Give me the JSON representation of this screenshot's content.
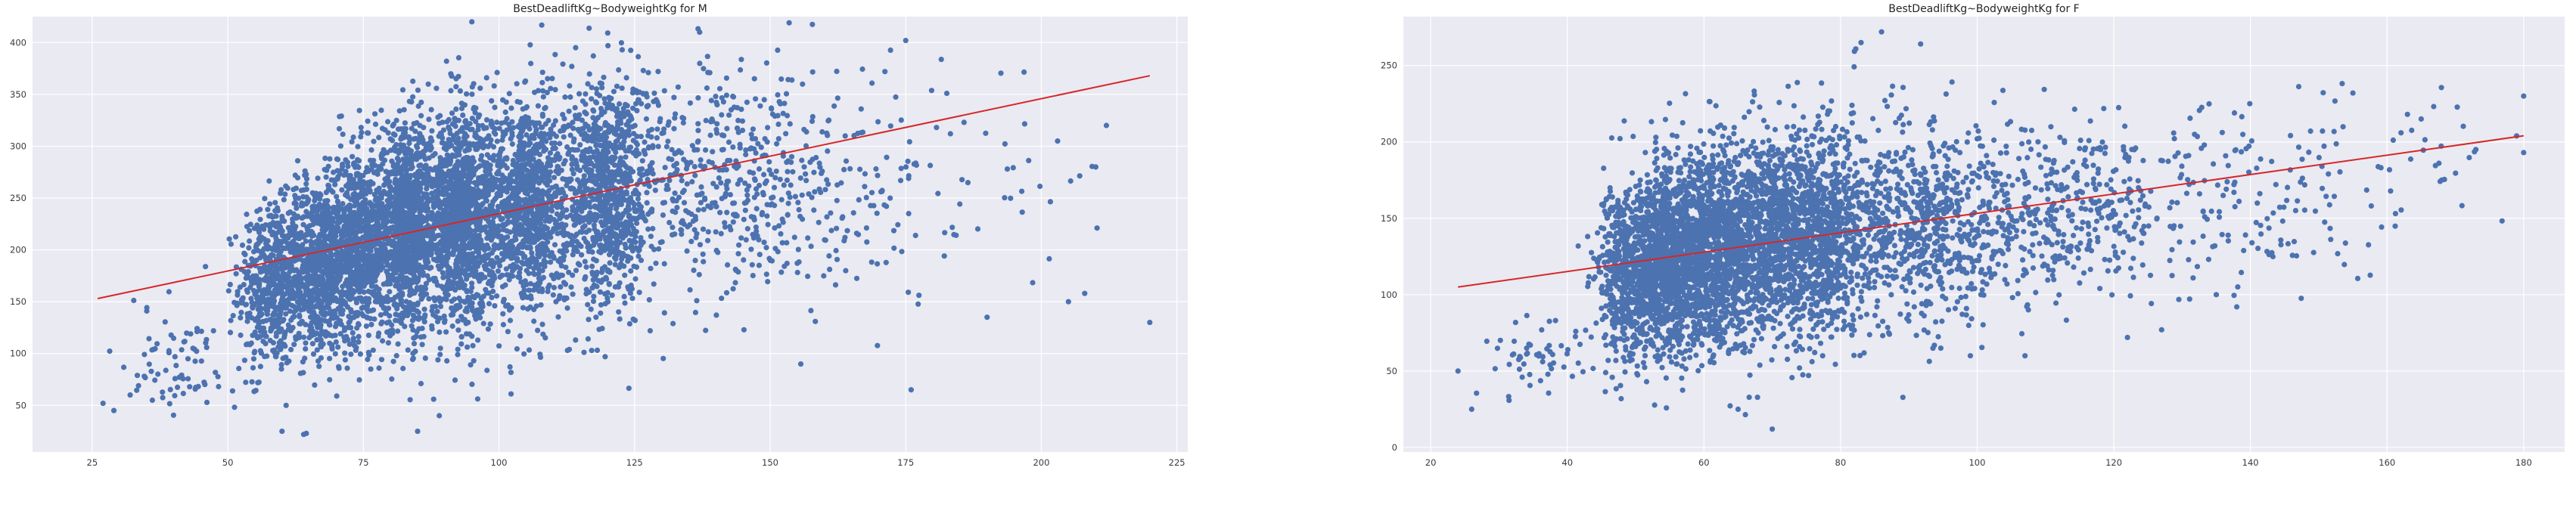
{
  "chart_data": [
    {
      "type": "scatter",
      "title": "BestDeadliftKg~BodyweightKg for M",
      "xlabel": "",
      "ylabel": "",
      "xlim": [
        14,
        227
      ],
      "ylim": [
        5,
        425
      ],
      "xticks": [
        25,
        50,
        75,
        100,
        125,
        150,
        175,
        200,
        225
      ],
      "yticks": [
        50,
        100,
        150,
        200,
        250,
        300,
        350,
        400
      ],
      "grid": true,
      "point_color": "#4c72b0",
      "line_color": "#d62728",
      "regression_line": {
        "x": [
          26,
          220
        ],
        "y": [
          153,
          368
        ]
      },
      "clusters": [
        {
          "cx": 58,
          "cy": 165,
          "sx": 3,
          "sy": 40,
          "n": 500
        },
        {
          "cx": 66,
          "cy": 185,
          "sx": 3,
          "sy": 42,
          "n": 700
        },
        {
          "cx": 74,
          "cy": 205,
          "sx": 3,
          "sy": 45,
          "n": 900
        },
        {
          "cx": 83,
          "cy": 220,
          "sx": 3,
          "sy": 48,
          "n": 1100
        },
        {
          "cx": 93,
          "cy": 232,
          "sx": 3,
          "sy": 50,
          "n": 1200
        },
        {
          "cx": 105,
          "cy": 245,
          "sx": 4,
          "sy": 52,
          "n": 1100
        },
        {
          "cx": 120,
          "cy": 255,
          "sx": 4,
          "sy": 55,
          "n": 900
        },
        {
          "cx": 140,
          "cy": 265,
          "sx": 11,
          "sy": 55,
          "n": 500
        },
        {
          "cx": 165,
          "cy": 270,
          "sx": 10,
          "sy": 55,
          "n": 130
        },
        {
          "cx": 192,
          "cy": 262,
          "sx": 9,
          "sy": 55,
          "n": 30
        },
        {
          "cx": 42,
          "cy": 95,
          "sx": 6,
          "sy": 25,
          "n": 80
        }
      ],
      "outliers": [
        [
          95,
          420
        ],
        [
          137,
          410
        ],
        [
          175,
          402
        ],
        [
          203,
          305
        ],
        [
          212,
          320
        ],
        [
          220,
          130
        ],
        [
          27,
          52
        ],
        [
          29,
          45
        ],
        [
          32,
          60
        ],
        [
          176,
          65
        ],
        [
          190,
          135
        ],
        [
          205,
          150
        ],
        [
          208,
          158
        ],
        [
          85,
          25
        ],
        [
          89,
          40
        ],
        [
          64,
          22
        ],
        [
          60,
          25
        ]
      ]
    },
    {
      "type": "scatter",
      "title": "BestDeadliftKg~BodyweightKg for F",
      "xlabel": "",
      "ylabel": "",
      "xlim": [
        16,
        186
      ],
      "ylim": [
        -3,
        282
      ],
      "xticks": [
        20,
        40,
        60,
        80,
        100,
        120,
        140,
        160,
        180
      ],
      "yticks": [
        0,
        50,
        100,
        150,
        200,
        250
      ],
      "grid": true,
      "point_color": "#4c72b0",
      "line_color": "#d62728",
      "regression_line": {
        "x": [
          24,
          180
        ],
        "y": [
          105,
          204
        ]
      },
      "clusters": [
        {
          "cx": 48,
          "cy": 115,
          "sx": 2,
          "sy": 28,
          "n": 500
        },
        {
          "cx": 53,
          "cy": 120,
          "sx": 2,
          "sy": 30,
          "n": 700
        },
        {
          "cx": 58,
          "cy": 126,
          "sx": 3,
          "sy": 32,
          "n": 900
        },
        {
          "cx": 64,
          "cy": 131,
          "sx": 3,
          "sy": 33,
          "n": 900
        },
        {
          "cx": 71,
          "cy": 136,
          "sx": 3,
          "sy": 34,
          "n": 800
        },
        {
          "cx": 78,
          "cy": 141,
          "sx": 3,
          "sy": 34,
          "n": 650
        },
        {
          "cx": 90,
          "cy": 146,
          "sx": 7,
          "sy": 32,
          "n": 700
        },
        {
          "cx": 110,
          "cy": 152,
          "sx": 9,
          "sy": 30,
          "n": 420
        },
        {
          "cx": 135,
          "cy": 162,
          "sx": 10,
          "sy": 30,
          "n": 170
        },
        {
          "cx": 160,
          "cy": 175,
          "sx": 9,
          "sy": 28,
          "n": 50
        },
        {
          "cx": 34,
          "cy": 60,
          "sx": 5,
          "sy": 15,
          "n": 60
        }
      ],
      "outliers": [
        [
          86,
          272
        ],
        [
          83,
          265
        ],
        [
          180,
          230
        ],
        [
          180,
          193
        ],
        [
          165,
          215
        ],
        [
          173,
          195
        ],
        [
          168,
          175
        ],
        [
          155,
          232
        ],
        [
          24,
          50
        ],
        [
          26,
          25
        ],
        [
          70,
          12
        ],
        [
          135,
          100
        ],
        [
          138,
          92
        ],
        [
          127,
          77
        ],
        [
          122,
          72
        ],
        [
          107,
          60
        ],
        [
          99,
          60
        ],
        [
          65,
          25
        ]
      ]
    }
  ]
}
